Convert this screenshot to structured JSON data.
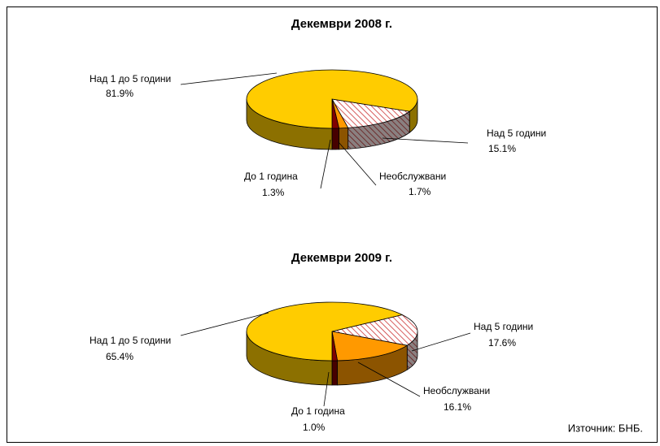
{
  "chart_data": [
    {
      "type": "pie",
      "title": "Декември 2008 г.",
      "categories": [
        "Над 5 години",
        "Необслужвани",
        "До 1 година",
        "Над 1 до 5 години"
      ],
      "values": [
        15.1,
        1.7,
        1.3,
        81.9
      ],
      "value_labels": [
        "15.1%",
        "1.7%",
        "1.3%",
        "81.9%"
      ],
      "colors": [
        "#cc3333",
        "#ff9900",
        "#800000",
        "#ffcc00"
      ],
      "hatch": [
        true,
        false,
        false,
        false
      ]
    },
    {
      "type": "pie",
      "title": "Декември 2009 г.",
      "categories": [
        "Над 5 години",
        "Необслужвани",
        "До 1 година",
        "Над 1 до 5 години"
      ],
      "values": [
        17.6,
        16.1,
        1.0,
        65.4
      ],
      "value_labels": [
        "17.6%",
        "16.1%",
        "1.0%",
        "65.4%"
      ],
      "colors": [
        "#cc3333",
        "#ff9900",
        "#800000",
        "#ffcc00"
      ],
      "hatch": [
        true,
        false,
        false,
        false
      ]
    }
  ],
  "source": "Източник: БНБ."
}
